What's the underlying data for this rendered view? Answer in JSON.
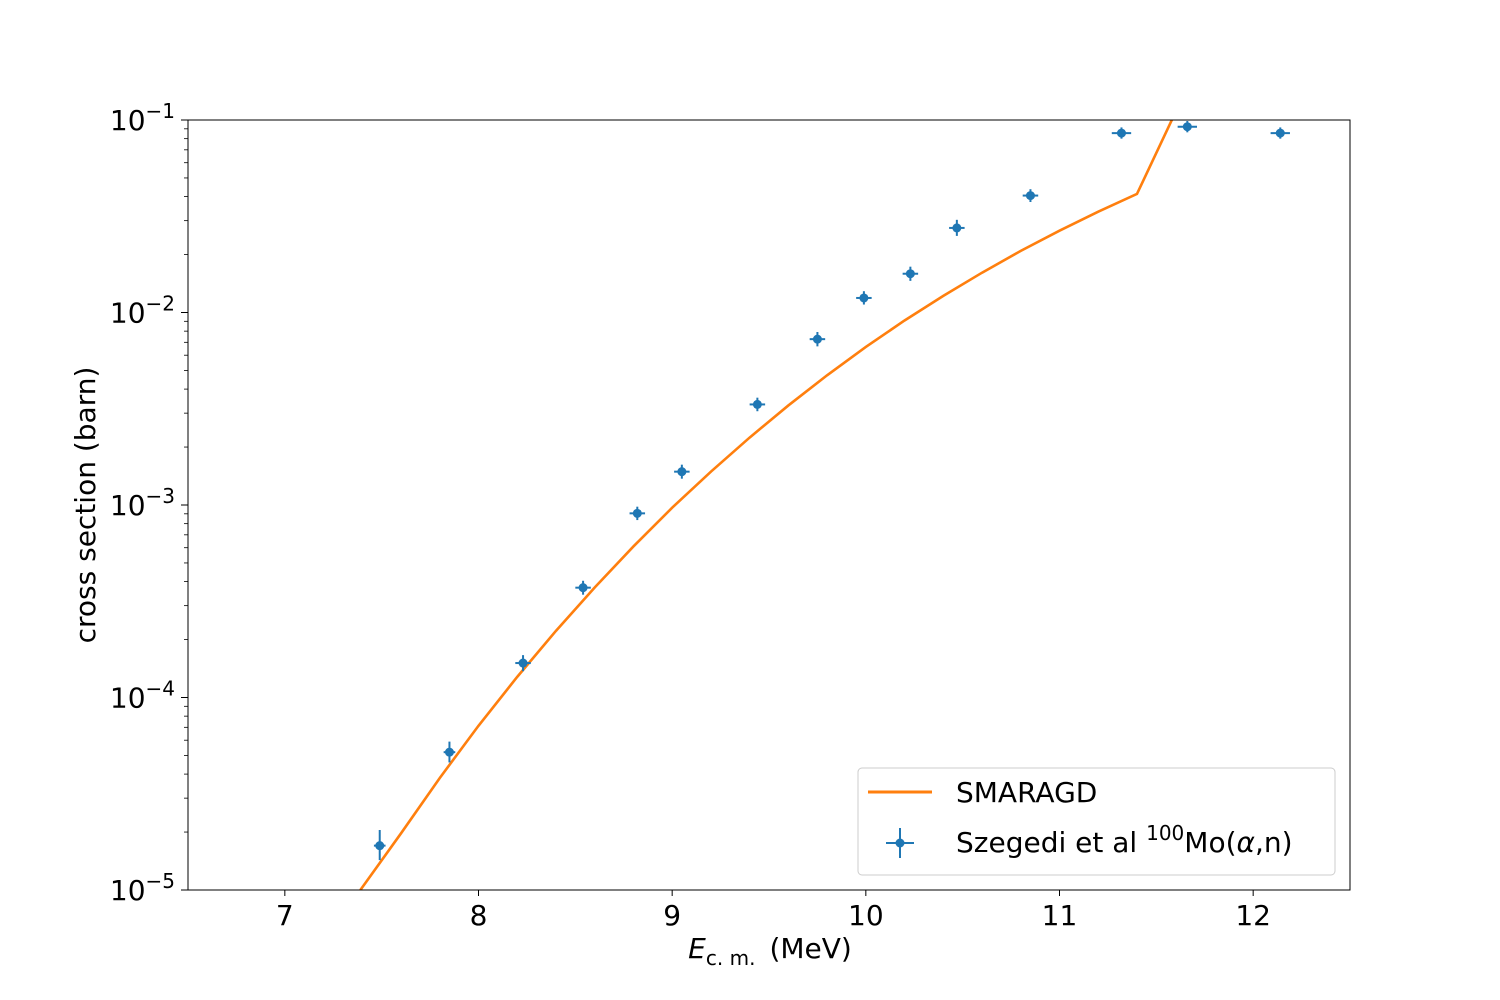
{
  "chart_data": {
    "type": "scatter",
    "xlabel": {
      "symbol": "E",
      "subscript": "c. m.",
      "unit": "(MeV)"
    },
    "ylabel": "cross section (barn)",
    "xlim": [
      6.5,
      12.5
    ],
    "ylim": [
      1e-05,
      0.1
    ],
    "yscale": "log",
    "grid": false,
    "legend_position": "lower-right",
    "x_ticks": [
      7,
      8,
      9,
      10,
      11,
      12
    ],
    "x_tick_labels": [
      "7",
      "8",
      "9",
      "10",
      "11",
      "12"
    ],
    "y_ticks": [
      {
        "value": 0.1,
        "base": "10",
        "exp": "−1"
      },
      {
        "value": 0.01,
        "base": "10",
        "exp": "−2"
      },
      {
        "value": 0.001,
        "base": "10",
        "exp": "−3"
      },
      {
        "value": 0.0001,
        "base": "10",
        "exp": "−4"
      },
      {
        "value": 1e-05,
        "base": "10",
        "exp": "−5"
      }
    ],
    "series": [
      {
        "name": "SMARAGD",
        "kind": "line",
        "color": "#ff7f0e",
        "x": [
          7.39,
          7.6,
          7.8,
          8.0,
          8.2,
          8.4,
          8.6,
          8.8,
          9.0,
          9.2,
          9.4,
          9.6,
          9.8,
          10.0,
          10.2,
          10.4,
          10.6,
          10.8,
          11.0,
          11.2,
          11.4,
          11.58
        ],
        "y": [
          1e-05,
          1.97e-05,
          3.82e-05,
          7.13e-05,
          0.000128,
          0.000222,
          0.000373,
          0.000609,
          0.000968,
          0.00149,
          0.00224,
          0.00329,
          0.00472,
          0.00662,
          0.00909,
          0.0122,
          0.0161,
          0.0209,
          0.0266,
          0.0334,
          0.0413,
          0.1
        ]
      },
      {
        "name_parts": {
          "prefix": "Szegedi et al ",
          "sup": "100",
          "mid": "Mo(",
          "greek": "α",
          "suffix": ",n)"
        },
        "kind": "errorbar",
        "color": "#1f77b4",
        "points": [
          {
            "x": 7.49,
            "y": 1.7e-05,
            "yerr": [
              2.7e-06,
              3.5e-06
            ],
            "xerr": 0.03
          },
          {
            "x": 7.85,
            "y": 5.2e-05,
            "yerr": [
              6e-06,
              7e-06
            ],
            "xerr": 0.03
          },
          {
            "x": 8.23,
            "y": 0.000151,
            "yerr": [
              1.4e-05,
              1.5e-05
            ],
            "xerr": 0.04
          },
          {
            "x": 8.54,
            "y": 0.000372,
            "yerr": [
              3e-05,
              3.2e-05
            ],
            "xerr": 0.04
          },
          {
            "x": 8.82,
            "y": 0.000905,
            "yerr": [
              7e-05,
              7.5e-05
            ],
            "xerr": 0.04
          },
          {
            "x": 9.05,
            "y": 0.00149,
            "yerr": [
              0.00012,
              0.00013
            ],
            "xerr": 0.04
          },
          {
            "x": 9.44,
            "y": 0.00333,
            "yerr": [
              0.00026,
              0.00028
            ],
            "xerr": 0.04
          },
          {
            "x": 9.75,
            "y": 0.00727,
            "yerr": [
              0.0006,
              0.00065
            ],
            "xerr": 0.04
          },
          {
            "x": 9.99,
            "y": 0.0119,
            "yerr": [
              0.0009,
              0.001
            ],
            "xerr": 0.04
          },
          {
            "x": 10.23,
            "y": 0.0159,
            "yerr": [
              0.0013,
              0.0014
            ],
            "xerr": 0.04
          },
          {
            "x": 10.47,
            "y": 0.0275,
            "yerr": [
              0.0025,
              0.0028
            ],
            "xerr": 0.04
          },
          {
            "x": 10.85,
            "y": 0.0405,
            "yerr": [
              0.003,
              0.0032
            ],
            "xerr": 0.04
          },
          {
            "x": 11.32,
            "y": 0.0855,
            "yerr": [
              0.0055,
              0.006
            ],
            "xerr": 0.05
          },
          {
            "x": 11.66,
            "y": 0.0923,
            "yerr": [
              0.006,
              0.0065
            ],
            "xerr": 0.05
          },
          {
            "x": 12.14,
            "y": 0.0855,
            "yerr": [
              0.0055,
              0.006
            ],
            "xerr": 0.05
          }
        ]
      }
    ]
  }
}
